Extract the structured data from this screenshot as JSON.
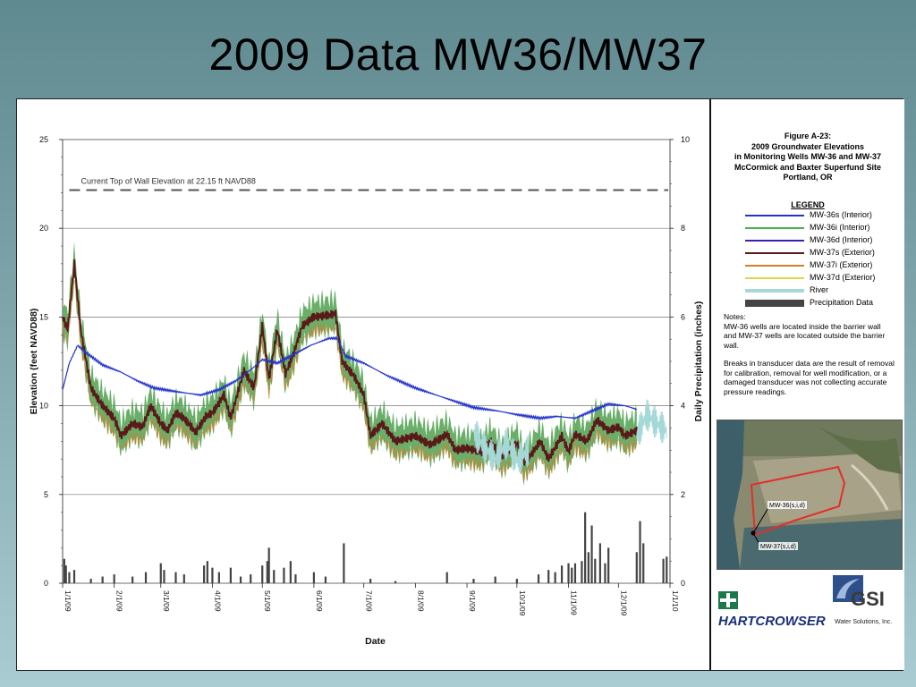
{
  "slide_title": "2009 Data MW36/MW37",
  "figure_panel": {
    "figure_title_lines": [
      "Figure A-23:",
      "2009 Groundwater Elevations",
      "in Monitoring Wells MW-36 and MW-37",
      "McCormick and Baxter Superfund Site",
      "Portland, OR"
    ],
    "legend_heading": "LEGEND",
    "legend": [
      {
        "label": "MW-36s (Interior)",
        "color": "#2233cc"
      },
      {
        "label": "MW-36i (Interior)",
        "color": "#4caf50"
      },
      {
        "label": "MW-36d (Interior)",
        "color": "#3a1fb0"
      },
      {
        "label": "MW-37s (Exterior)",
        "color": "#5a1a1a"
      },
      {
        "label": "MW-37i (Exterior)",
        "color": "#d08030"
      },
      {
        "label": "MW-37d (Exterior)",
        "color": "#e8d24a"
      },
      {
        "label": "River",
        "color": "#a6d8d8"
      },
      {
        "label": "Precipitation Data",
        "color": "#444444"
      }
    ],
    "notes_heading": "Notes:",
    "notes": [
      "MW-36 wells are located inside the barrier wall and MW-37 wells are located outside the barrier wall.",
      "Breaks in transducer data are the result of removal for calibration, removal for well modification, or a damaged transducer was not collecting accurate pressure readings."
    ],
    "map_labels": [
      "MW-36(s,i,d)",
      "MW-37(s,i,d)"
    ],
    "logo_left": "HARTCROWSER",
    "logo_right_text": "GSI",
    "logo_right_sub": "Water Solutions, Inc.",
    "colors": {
      "map_outline": "#e0302a"
    }
  },
  "chart_data": {
    "type": "line",
    "title": "",
    "xlabel": "Date",
    "ylabel": "Elevation (feet NAVD88)",
    "y2label": "Daily Precipitation (inches)",
    "ylim": [
      0,
      25
    ],
    "y2lim": [
      0,
      10
    ],
    "yticks": [
      0,
      5,
      10,
      15,
      20,
      25
    ],
    "y2ticks": [
      0,
      2,
      4,
      6,
      8,
      10
    ],
    "x_ticks": [
      "1/1/09",
      "2/1/09",
      "3/1/09",
      "4/1/09",
      "5/1/09",
      "6/1/09",
      "7/1/09",
      "8/1/09",
      "9/1/09",
      "10/1/09",
      "11/1/09",
      "12/1/09",
      "1/1/10"
    ],
    "grid": true,
    "annotation": {
      "text": "Current Top of Wall Elevation at 22.15 ft NAVD88",
      "y": 22.15
    },
    "series": [
      {
        "name": "MW-36s (Interior)",
        "points": [
          [
            "2009-01-01",
            10.9
          ],
          [
            "2009-01-05",
            12.4
          ],
          [
            "2009-01-10",
            13.4
          ],
          [
            "2009-01-15",
            13.0
          ],
          [
            "2009-01-25",
            12.3
          ],
          [
            "2009-02-05",
            11.9
          ],
          [
            "2009-02-15",
            11.4
          ],
          [
            "2009-02-25",
            11.0
          ],
          [
            "2009-03-10",
            10.8
          ],
          [
            "2009-03-25",
            10.6
          ],
          [
            "2009-04-05",
            10.9
          ],
          [
            "2009-04-15",
            11.4
          ],
          [
            "2009-04-25",
            12.1
          ],
          [
            "2009-05-01",
            12.6
          ],
          [
            "2009-05-10",
            12.4
          ],
          [
            "2009-05-20",
            12.9
          ],
          [
            "2009-05-30",
            13.4
          ],
          [
            "2009-06-10",
            13.8
          ],
          [
            "2009-06-15",
            13.8
          ],
          [
            "2009-06-20",
            12.8
          ],
          [
            "2009-07-01",
            12.4
          ],
          [
            "2009-07-15",
            11.7
          ],
          [
            "2009-08-01",
            11.0
          ],
          [
            "2009-08-20",
            10.4
          ],
          [
            "2009-09-05",
            9.9
          ],
          [
            "2009-09-20",
            9.7
          ],
          [
            "2009-10-01",
            9.5
          ],
          [
            "2009-10-15",
            9.3
          ],
          [
            "2009-10-25",
            9.4
          ],
          [
            "2009-11-05",
            9.3
          ],
          [
            "2009-11-15",
            9.7
          ],
          [
            "2009-11-25",
            10.1
          ],
          [
            "2009-12-05",
            10.0
          ],
          [
            "2009-12-12",
            9.8
          ]
        ]
      },
      {
        "name": "MW-37s (Exterior)",
        "points": [
          [
            "2009-01-01",
            15.0
          ],
          [
            "2009-01-04",
            14.3
          ],
          [
            "2009-01-08",
            18.0
          ],
          [
            "2009-01-12",
            14.2
          ],
          [
            "2009-01-18",
            11.0
          ],
          [
            "2009-01-25",
            10.0
          ],
          [
            "2009-02-01",
            9.3
          ],
          [
            "2009-02-05",
            8.3
          ],
          [
            "2009-02-12",
            9.0
          ],
          [
            "2009-02-18",
            8.8
          ],
          [
            "2009-02-23",
            10.0
          ],
          [
            "2009-03-01",
            9.0
          ],
          [
            "2009-03-05",
            8.6
          ],
          [
            "2009-03-10",
            9.6
          ],
          [
            "2009-03-15",
            9.3
          ],
          [
            "2009-03-22",
            8.5
          ],
          [
            "2009-03-28",
            9.4
          ],
          [
            "2009-04-01",
            9.6
          ],
          [
            "2009-04-08",
            10.6
          ],
          [
            "2009-04-12",
            9.3
          ],
          [
            "2009-04-20",
            12.0
          ],
          [
            "2009-04-26",
            11.0
          ],
          [
            "2009-05-01",
            14.5
          ],
          [
            "2009-05-05",
            11.5
          ],
          [
            "2009-05-10",
            14.3
          ],
          [
            "2009-05-15",
            11.8
          ],
          [
            "2009-05-20",
            13.0
          ],
          [
            "2009-05-25",
            14.5
          ],
          [
            "2009-06-01",
            15.0
          ],
          [
            "2009-06-10",
            15.1
          ],
          [
            "2009-06-14",
            15.2
          ],
          [
            "2009-06-18",
            12.5
          ],
          [
            "2009-06-25",
            11.7
          ],
          [
            "2009-07-01",
            10.6
          ],
          [
            "2009-07-05",
            8.3
          ],
          [
            "2009-07-12",
            9.0
          ],
          [
            "2009-07-20",
            8.0
          ],
          [
            "2009-08-01",
            8.3
          ],
          [
            "2009-08-10",
            7.8
          ],
          [
            "2009-08-20",
            8.4
          ],
          [
            "2009-08-25",
            7.5
          ],
          [
            "2009-09-01",
            7.6
          ],
          [
            "2009-09-10",
            7.4
          ],
          [
            "2009-09-15",
            8.0
          ],
          [
            "2009-09-22",
            7.1
          ],
          [
            "2009-10-01",
            7.9
          ],
          [
            "2009-10-05",
            6.8
          ],
          [
            "2009-10-10",
            7.3
          ],
          [
            "2009-10-15",
            8.0
          ],
          [
            "2009-10-20",
            7.0
          ],
          [
            "2009-10-28",
            8.3
          ],
          [
            "2009-11-01",
            7.4
          ],
          [
            "2009-11-05",
            8.4
          ],
          [
            "2009-11-12",
            8.0
          ],
          [
            "2009-11-18",
            9.2
          ],
          [
            "2009-11-25",
            8.6
          ],
          [
            "2009-12-01",
            8.8
          ],
          [
            "2009-12-05",
            8.3
          ],
          [
            "2009-12-12",
            8.6
          ]
        ]
      },
      {
        "name": "MW-36i (Interior)",
        "band_spread": 0.9,
        "follows": "MW-37s (Exterior)"
      },
      {
        "name": "River",
        "points": [
          [
            "2009-09-05",
            8.5
          ],
          [
            "2009-09-12",
            7.6
          ],
          [
            "2009-09-18",
            7.0
          ],
          [
            "2009-09-25",
            7.9
          ],
          [
            "2009-10-01",
            6.9
          ],
          [
            "2009-10-08",
            7.5
          ],
          [
            "2009-12-12",
            8.3
          ],
          [
            "2009-12-18",
            9.5
          ],
          [
            "2009-12-24",
            9.0
          ],
          [
            "2009-12-30",
            8.6
          ]
        ]
      },
      {
        "name": "Precipitation Data",
        "axis": "y2",
        "points": [
          [
            "2009-01-02",
            0.55
          ],
          [
            "2009-01-03",
            0.4
          ],
          [
            "2009-01-05",
            0.25
          ],
          [
            "2009-01-08",
            0.3
          ],
          [
            "2009-01-18",
            0.1
          ],
          [
            "2009-01-25",
            0.15
          ],
          [
            "2009-02-01",
            0.2
          ],
          [
            "2009-02-12",
            0.15
          ],
          [
            "2009-02-20",
            0.25
          ],
          [
            "2009-03-01",
            0.45
          ],
          [
            "2009-03-03",
            0.3
          ],
          [
            "2009-03-10",
            0.25
          ],
          [
            "2009-03-15",
            0.2
          ],
          [
            "2009-03-27",
            0.4
          ],
          [
            "2009-03-29",
            0.5
          ],
          [
            "2009-04-01",
            0.35
          ],
          [
            "2009-04-05",
            0.25
          ],
          [
            "2009-04-12",
            0.35
          ],
          [
            "2009-04-18",
            0.15
          ],
          [
            "2009-04-24",
            0.2
          ],
          [
            "2009-05-01",
            0.4
          ],
          [
            "2009-05-04",
            0.5
          ],
          [
            "2009-05-05",
            0.8
          ],
          [
            "2009-05-08",
            0.3
          ],
          [
            "2009-05-14",
            0.35
          ],
          [
            "2009-05-18",
            0.5
          ],
          [
            "2009-05-21",
            0.2
          ],
          [
            "2009-06-01",
            0.25
          ],
          [
            "2009-06-08",
            0.15
          ],
          [
            "2009-06-19",
            0.9
          ],
          [
            "2009-07-05",
            0.1
          ],
          [
            "2009-07-20",
            0.05
          ],
          [
            "2009-08-20",
            0.25
          ],
          [
            "2009-09-05",
            0.1
          ],
          [
            "2009-09-18",
            0.15
          ],
          [
            "2009-10-01",
            0.1
          ],
          [
            "2009-10-14",
            0.2
          ],
          [
            "2009-10-20",
            0.3
          ],
          [
            "2009-10-24",
            0.25
          ],
          [
            "2009-10-28",
            0.4
          ],
          [
            "2009-11-01",
            0.45
          ],
          [
            "2009-11-03",
            0.35
          ],
          [
            "2009-11-05",
            0.45
          ],
          [
            "2009-11-09",
            0.5
          ],
          [
            "2009-11-11",
            1.6
          ],
          [
            "2009-11-13",
            0.7
          ],
          [
            "2009-11-15",
            1.3
          ],
          [
            "2009-11-17",
            0.55
          ],
          [
            "2009-11-20",
            0.9
          ],
          [
            "2009-11-23",
            0.45
          ],
          [
            "2009-11-25",
            0.8
          ],
          [
            "2009-12-12",
            0.7
          ],
          [
            "2009-12-14",
            1.4
          ],
          [
            "2009-12-16",
            0.9
          ],
          [
            "2009-12-28",
            0.55
          ],
          [
            "2009-12-30",
            0.6
          ]
        ]
      }
    ]
  }
}
